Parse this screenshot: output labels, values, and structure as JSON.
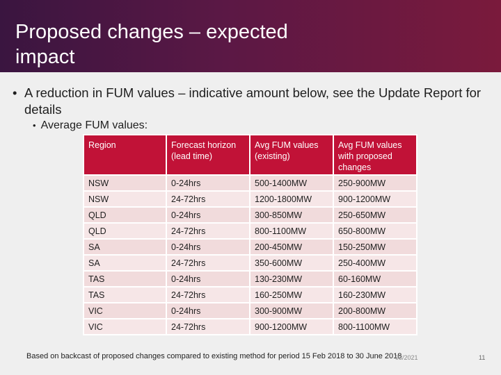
{
  "slide": {
    "title": "Proposed changes – expected\nimpact",
    "bullet_main": "A reduction in FUM values – indicative amount below, see the Update Report for details",
    "bullet_sub": "Average FUM values:",
    "footnote": "Based on backcast of proposed changes compared to existing method for period 15 Feb 2018 to 30 June 2018",
    "date": "03/2021",
    "page_number": "11"
  },
  "table": {
    "headers": [
      "Region",
      "Forecast horizon (lead time)",
      "Avg FUM values (existing)",
      "Avg FUM values with proposed changes"
    ],
    "rows": [
      [
        "NSW",
        "0-24hrs",
        "500-1400MW",
        "250-900MW"
      ],
      [
        "NSW",
        "24-72hrs",
        "1200-1800MW",
        "900-1200MW"
      ],
      [
        "QLD",
        "0-24hrs",
        "300-850MW",
        "250-650MW"
      ],
      [
        "QLD",
        "24-72hrs",
        "800-1100MW",
        "650-800MW"
      ],
      [
        "SA",
        "0-24hrs",
        "200-450MW",
        "150-250MW"
      ],
      [
        "SA",
        "24-72hrs",
        "350-600MW",
        "250-400MW"
      ],
      [
        "TAS",
        "0-24hrs",
        "130-230MW",
        "60-160MW"
      ],
      [
        "TAS",
        "24-72hrs",
        "160-250MW",
        "160-230MW"
      ],
      [
        "VIC",
        "0-24hrs",
        "300-900MW",
        "200-800MW"
      ],
      [
        "VIC",
        "24-72hrs",
        "900-1200MW",
        "800-1100MW"
      ]
    ]
  },
  "colors": {
    "header_gradient_start": "#3a1540",
    "header_gradient_end": "#7a1a3c",
    "table_header": "#c11237",
    "table_row": "#f1dbdc"
  }
}
